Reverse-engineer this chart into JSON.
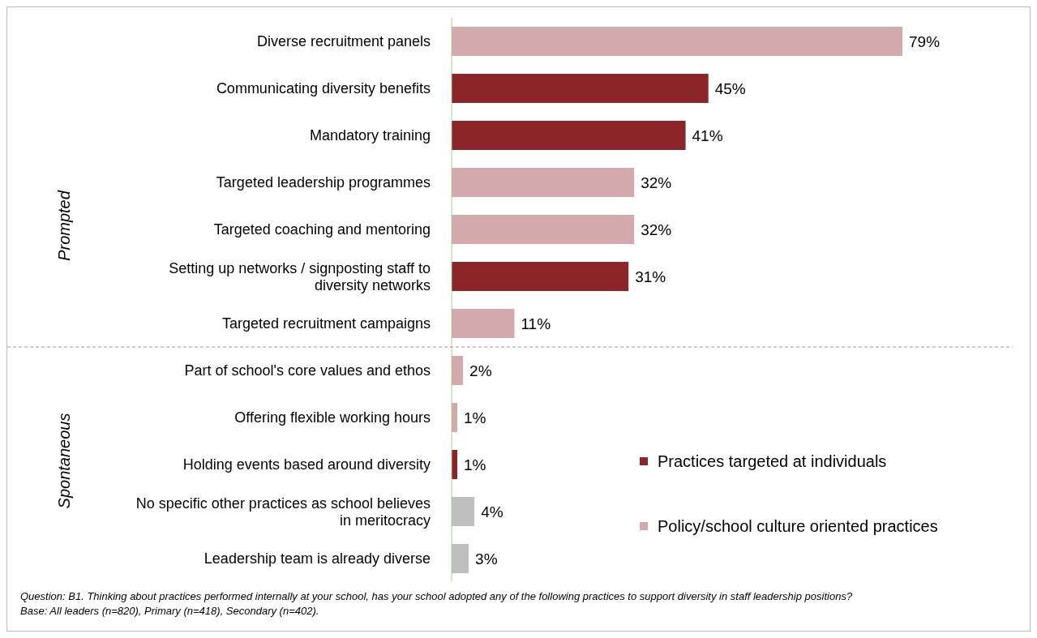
{
  "chart_data": {
    "type": "bar",
    "orientation": "horizontal",
    "stacked": true,
    "legend": "bottom right",
    "categories": [
      "Diverse recruitment panels",
      "Communicating diversity benefits",
      "Mandatory training",
      "Targeted leadership programmes",
      "Targeted coaching and mentoring",
      "Setting up networks / signposting staff to diversity networks",
      "Targeted recruitment campaigns",
      "Part of school's core values and ethos",
      "Offering flexible working hours",
      "Holding events based around diversity",
      "No specific other practices as school believes in meritocracy",
      "Leadership team is already diverse"
    ],
    "series": [
      {
        "name": "Practices targeted at individuals",
        "color": "#8b2529",
        "values": [
          null,
          45,
          41,
          null,
          null,
          31,
          null,
          null,
          null,
          1,
          null,
          null
        ],
        "value_labels": [
          null,
          "45%",
          "41%",
          null,
          null,
          "31%",
          null,
          null,
          null,
          "1%",
          null,
          null
        ]
      },
      {
        "name": "Policy/school culture oriented practices",
        "color": "#d3a9ab",
        "values": [
          79,
          null,
          null,
          32,
          32,
          null,
          11,
          2,
          1,
          null,
          null,
          null
        ],
        "value_labels": [
          "79%",
          null,
          null,
          "32%",
          "32%",
          null,
          "11%",
          "2%",
          "1%",
          null,
          null,
          null
        ]
      },
      {
        "color": "#bfbfbf",
        "values": [
          null,
          null,
          null,
          null,
          null,
          null,
          null,
          null,
          null,
          null,
          4,
          3
        ],
        "value_labels": [
          null,
          null,
          null,
          null,
          null,
          null,
          null,
          null,
          null,
          null,
          "4%",
          "3%"
        ]
      }
    ],
    "annotations": [
      "Prompted",
      "Spontaneous",
      "Question: B1. Thinking about practices performed internally at your school, has your school adopted any of the following practices to support diversity in staff leadership positions?",
      "Base: All leaders (n=820), Primary (n=418), Secondary (n=402)."
    ]
  }
}
